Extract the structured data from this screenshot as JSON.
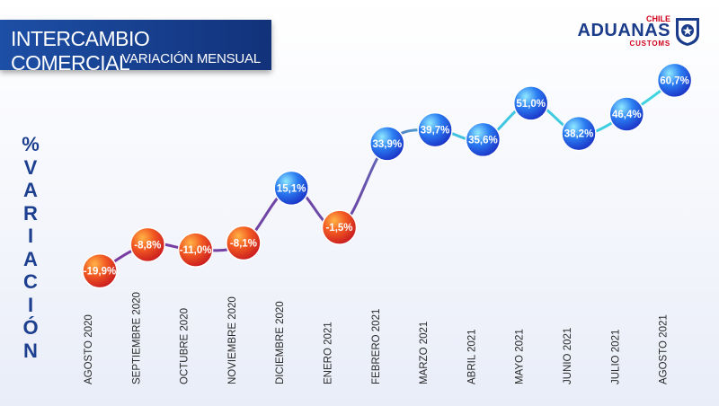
{
  "header": {
    "title": "INTERCAMBIO COMERCIAL",
    "subtitle": "VARIACIÓN MENSUAL"
  },
  "logo": {
    "chile": "CHILE",
    "name": "ADUANAS",
    "customs": "CUSTOMS"
  },
  "ylabel_letters": [
    "%",
    "V",
    "A",
    "R",
    "I",
    "A",
    "C",
    "I",
    "Ó",
    "N"
  ],
  "colors": {
    "negative": "#e8351f",
    "positive": "#1a3fd8",
    "line_negative": "#9b3aa8",
    "line_positive": "#3fd0d8",
    "header": "#1d4fa6"
  },
  "chart_data": {
    "type": "line",
    "title": "INTERCAMBIO COMERCIAL",
    "subtitle": "VARIACIÓN MENSUAL",
    "xlabel": "",
    "ylabel": "% VARIACIÓN",
    "categories": [
      "AGOSTO 2020",
      "SEPTIEMBRE 2020",
      "OCTUBRE 2020",
      "NOVIEMBRE 2020",
      "DICIEMBRE 2020",
      "ENERO 2021",
      "FEBRERO 2021",
      "MARZO 2021",
      "ABRIL 2021",
      "MAYO 2021",
      "JUNIO 2021",
      "JULIO 2021",
      "AGOSTO 2021"
    ],
    "values": [
      -19.9,
      -8.8,
      -11.0,
      -8.1,
      15.1,
      -1.5,
      33.9,
      39.7,
      35.6,
      51.0,
      38.2,
      46.4,
      60.7
    ],
    "labels": [
      "-19,9%",
      "-8,8%",
      "-11,0%",
      "-8,1%",
      "15,1%",
      "-1,5%",
      "33,9%",
      "39,7%",
      "35,6%",
      "51,0%",
      "38,2%",
      "46,4%",
      "60,7%"
    ],
    "ylim": [
      -25,
      65
    ],
    "grid": false,
    "legend": "none"
  }
}
